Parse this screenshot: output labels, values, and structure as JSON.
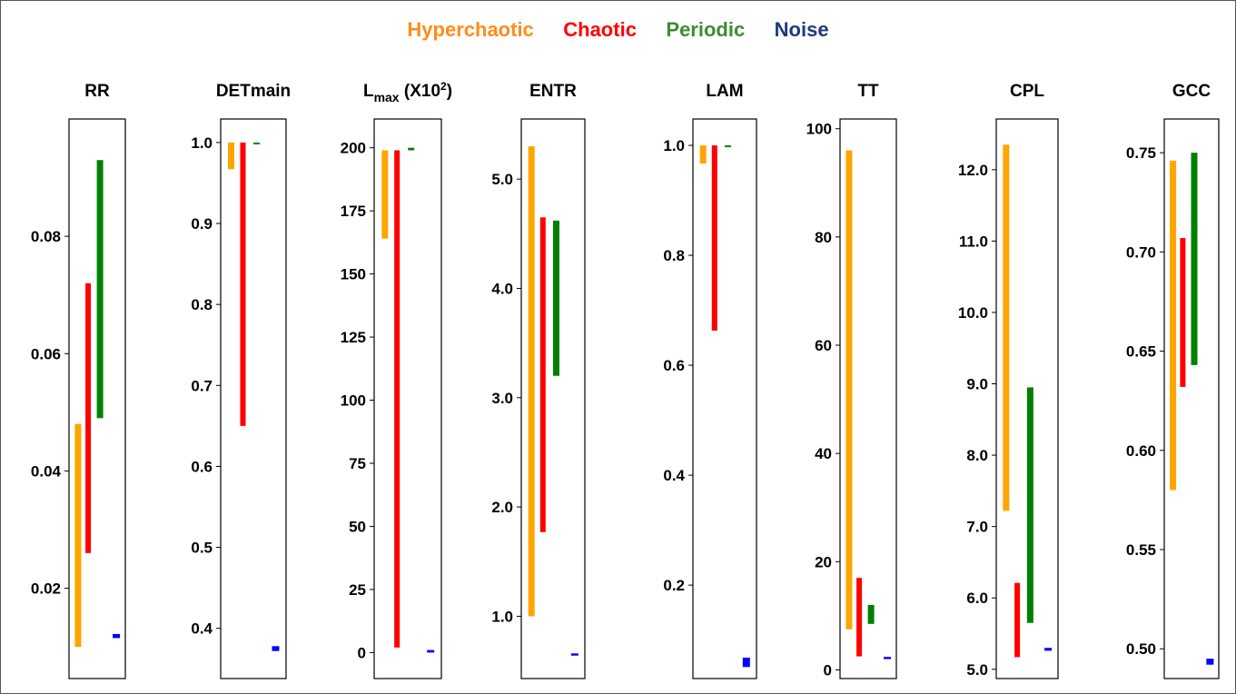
{
  "legend": [
    {
      "label": "Hyperchaotic",
      "color": "#FFA500"
    },
    {
      "label": "Chaotic",
      "color": "#FF0000"
    },
    {
      "label": "Periodic",
      "color": "#008000"
    },
    {
      "label": "Noise",
      "color": "#0000FF"
    }
  ],
  "legend_text_colors": [
    "#FF8C1A",
    "#FF0000",
    "#3C8D2F",
    "#1F3A7A"
  ],
  "chart_data": [
    {
      "type": "range-bar",
      "title": "RR",
      "ylim": [
        0.0046,
        0.1
      ],
      "ticks": [
        0.02,
        0.04,
        0.06,
        0.08
      ],
      "tick_labels": [
        "0.02",
        "0.04",
        "0.06",
        "0.08"
      ],
      "series": [
        {
          "min": 0.01,
          "max": 0.048
        },
        {
          "min": 0.026,
          "max": 0.072
        },
        {
          "min": 0.049,
          "max": 0.093
        },
        {
          "min": 0.0115,
          "max": 0.0122
        }
      ]
    },
    {
      "type": "range-bar",
      "title": "DETmain",
      "ylim": [
        0.338,
        1.029
      ],
      "ticks": [
        0.4,
        0.5,
        0.6,
        0.7,
        0.8,
        0.9,
        1.0
      ],
      "tick_labels": [
        "0.4",
        "0.5",
        "0.6",
        "0.7",
        "0.8",
        "0.9",
        "1.0"
      ],
      "series": [
        {
          "min": 0.967,
          "max": 1.0
        },
        {
          "min": 0.65,
          "max": 1.0
        },
        {
          "min": 0.999,
          "max": 1.0
        },
        {
          "min": 0.372,
          "max": 0.378
        }
      ]
    },
    {
      "type": "range-bar",
      "title": "L",
      "title_sub": "max",
      "title_rest": " (X10",
      "title_sup": "2",
      "title_end": ")",
      "ylim": [
        -10.3,
        211.4
      ],
      "ticks": [
        0,
        25,
        50,
        75,
        100,
        125,
        150,
        175,
        200
      ],
      "tick_labels": [
        "0",
        "25",
        "50",
        "75",
        "100",
        "125",
        "150",
        "175",
        "200"
      ],
      "series": [
        {
          "min": 164,
          "max": 199
        },
        {
          "min": 2,
          "max": 199
        },
        {
          "min": 199,
          "max": 200
        },
        {
          "min": 0,
          "max": 1
        }
      ]
    },
    {
      "type": "range-bar",
      "title": "ENTR",
      "ylim": [
        0.43,
        5.55
      ],
      "ticks": [
        1.0,
        2.0,
        3.0,
        4.0,
        5.0
      ],
      "tick_labels": [
        "1.0",
        "2.0",
        "3.0",
        "4.0",
        "5.0"
      ],
      "series": [
        {
          "min": 1.0,
          "max": 5.3
        },
        {
          "min": 1.77,
          "max": 4.65
        },
        {
          "min": 3.2,
          "max": 4.62
        },
        {
          "min": 0.64,
          "max": 0.66
        }
      ]
    },
    {
      "type": "range-bar",
      "title": "LAM",
      "ylim": [
        0.03,
        1.048
      ],
      "ticks": [
        0.2,
        0.4,
        0.6,
        0.8,
        1.0
      ],
      "tick_labels": [
        "0.2",
        "0.4",
        "0.6",
        "0.8",
        "1.0"
      ],
      "series": [
        {
          "min": 0.967,
          "max": 1.0
        },
        {
          "min": 0.663,
          "max": 1.0
        },
        {
          "min": 0.999,
          "max": 1.0
        },
        {
          "min": 0.051,
          "max": 0.068
        }
      ]
    },
    {
      "type": "range-bar",
      "title": "TT",
      "ylim": [
        -1.6,
        101.8
      ],
      "ticks": [
        0,
        20,
        40,
        60,
        80,
        100
      ],
      "tick_labels": [
        "0",
        "20",
        "40",
        "60",
        "80",
        "100"
      ],
      "series": [
        {
          "min": 7.5,
          "max": 96
        },
        {
          "min": 2.5,
          "max": 17
        },
        {
          "min": 8.5,
          "max": 12
        },
        {
          "min": 2.0,
          "max": 2.4
        }
      ]
    },
    {
      "type": "range-bar",
      "title": "CPL",
      "ylim": [
        4.87,
        12.71
      ],
      "ticks": [
        5.0,
        6.0,
        7.0,
        8.0,
        9.0,
        10.0,
        11.0,
        12.0
      ],
      "tick_labels": [
        "5.0",
        "6.0",
        "7.0",
        "8.0",
        "9.0",
        "10.0",
        "11.0",
        "12.0"
      ],
      "series": [
        {
          "min": 7.22,
          "max": 12.35
        },
        {
          "min": 5.17,
          "max": 6.21
        },
        {
          "min": 5.65,
          "max": 8.95
        },
        {
          "min": 5.26,
          "max": 5.3
        }
      ]
    },
    {
      "type": "range-bar",
      "title": "GCC",
      "ylim": [
        0.485,
        0.767
      ],
      "ticks": [
        0.5,
        0.55,
        0.6,
        0.65,
        0.7,
        0.75
      ],
      "tick_labels": [
        "0.50",
        "0.55",
        "0.60",
        "0.65",
        "0.70",
        "0.75"
      ],
      "series": [
        {
          "min": 0.58,
          "max": 0.746
        },
        {
          "min": 0.632,
          "max": 0.707
        },
        {
          "min": 0.643,
          "max": 0.75
        },
        {
          "min": 0.492,
          "max": 0.495
        }
      ]
    }
  ]
}
